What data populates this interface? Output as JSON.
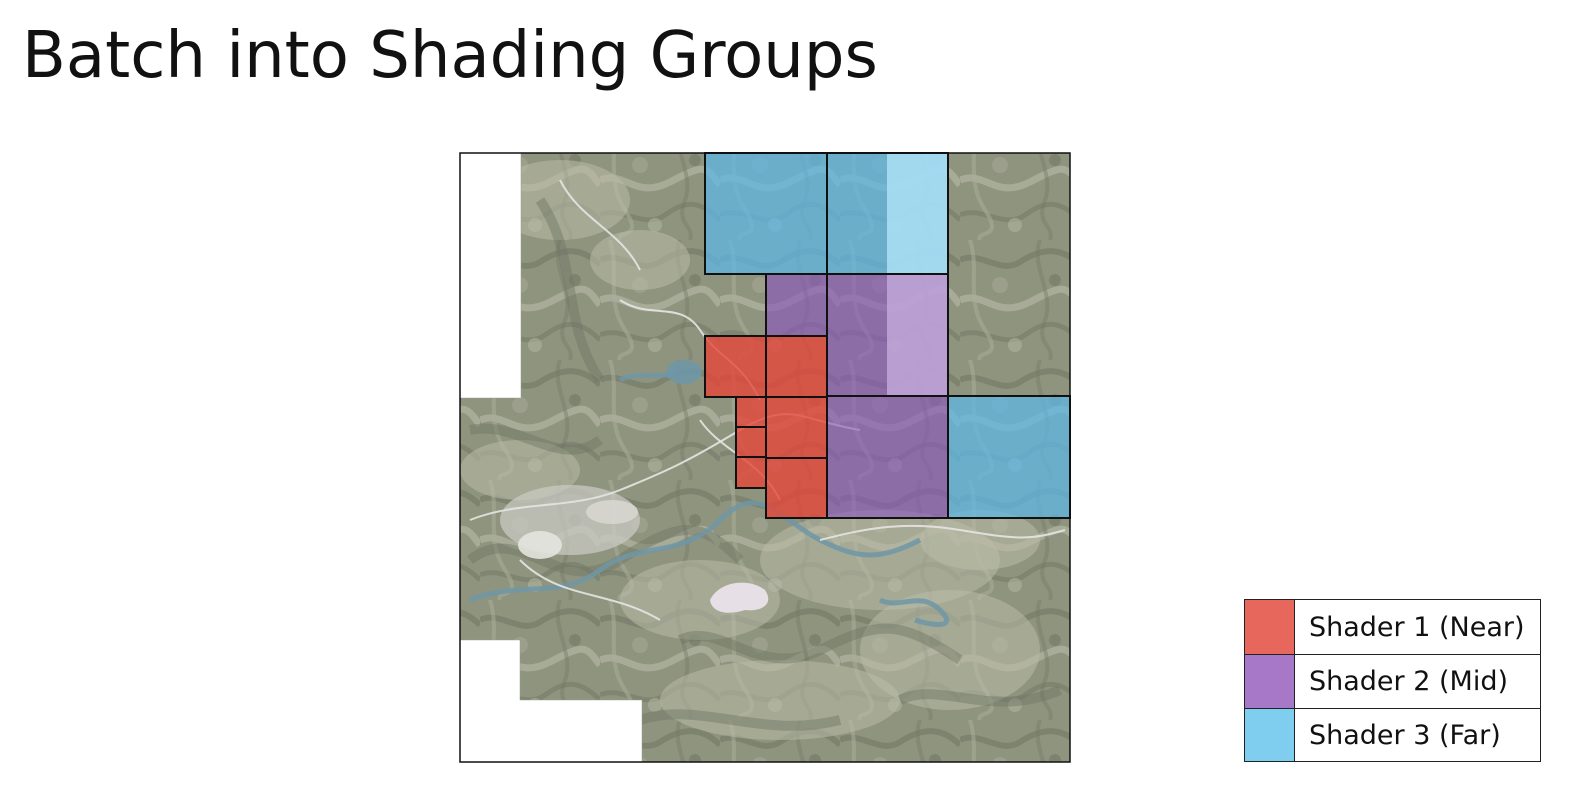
{
  "slide": {
    "title": "Batch into Shading Groups"
  },
  "colors": {
    "shader_near": "#e8675d",
    "shader_mid": "#a778c8",
    "shader_far": "#7fcdef",
    "near_overlay": "#e3463a",
    "mid_overlay": "#8a55bd",
    "far_overlay": "#5bb8e8",
    "map_base": "#8f947f",
    "map_dark": "#6f7563",
    "map_light": "#b9bba8",
    "road": "#e6e6e2",
    "water": "#6f97a7",
    "outline": "#111111"
  },
  "legend": {
    "items": [
      {
        "label": "Shader 1 (Near)",
        "color": "#e8675d"
      },
      {
        "label": "Shader 2 (Mid)",
        "color": "#a778c8"
      },
      {
        "label": "Shader 3 (Far)",
        "color": "#7fcdef"
      }
    ]
  }
}
